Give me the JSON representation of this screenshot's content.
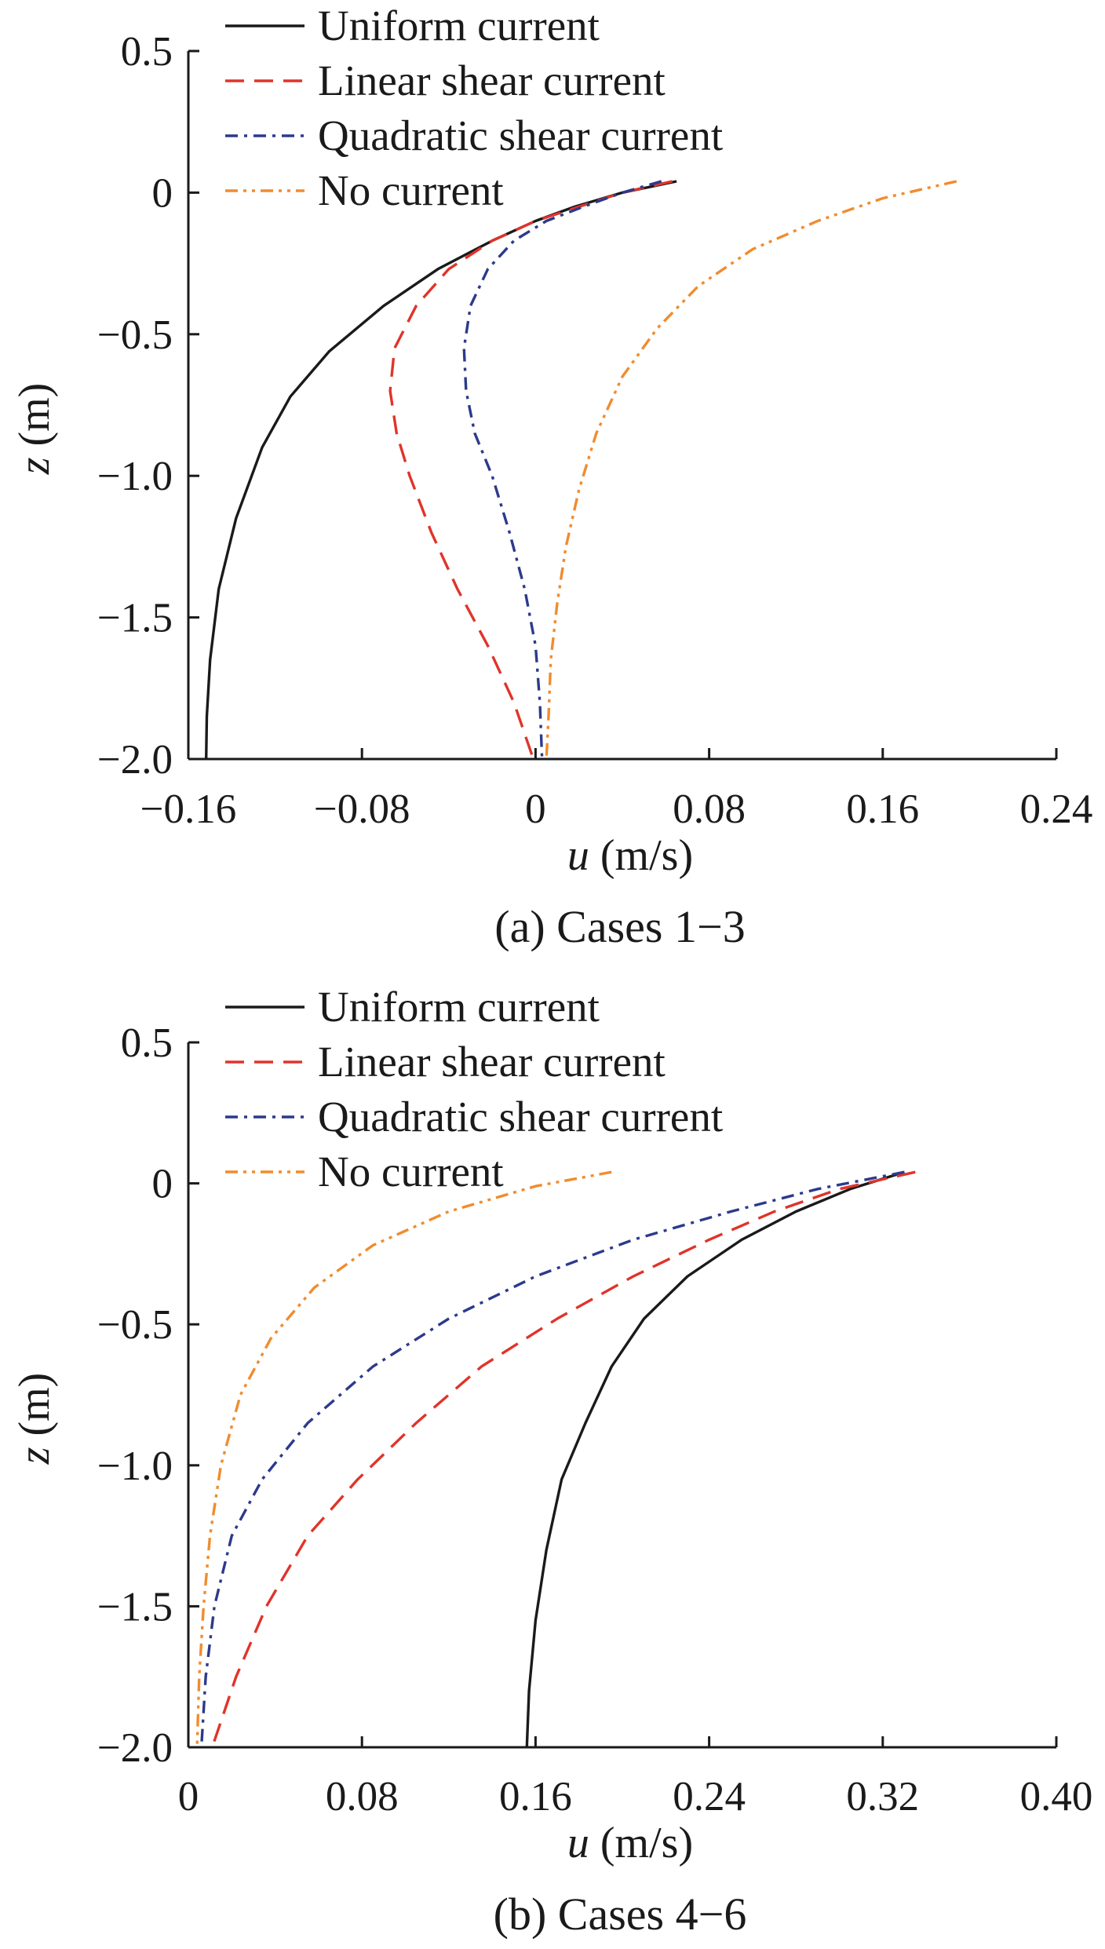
{
  "chart_data": [
    {
      "type": "line",
      "caption": "(a) Cases 1−3",
      "xlabel_symbol": "u",
      "xlabel_unit": " (m/s)",
      "ylabel_symbol": "z",
      "ylabel_unit": " (m)",
      "xlim": [
        -0.16,
        0.24
      ],
      "ylim": [
        -2.0,
        0.5
      ],
      "xticks": [
        -0.16,
        -0.08,
        0,
        0.08,
        0.16,
        0.24
      ],
      "xtick_labels": [
        "−0.16",
        "−0.08",
        "0",
        "0.08",
        "0.16",
        "0.24"
      ],
      "yticks": [
        0.5,
        0,
        -0.5,
        -1.0,
        -1.5,
        -2.0
      ],
      "ytick_labels": [
        "0.5",
        "0",
        "−0.5",
        "−1.0",
        "−1.5",
        "−2.0"
      ],
      "legend_position": "top-left",
      "series": [
        {
          "name": "Uniform current",
          "color": "#1a1a1a",
          "dash": "solid",
          "x": [
            0.065,
            0.04,
            0.018,
            0.0,
            -0.02,
            -0.045,
            -0.07,
            -0.095,
            -0.113,
            -0.126,
            -0.138,
            -0.146,
            -0.15,
            -0.1515,
            -0.1518
          ],
          "y": [
            0.04,
            0.0,
            -0.05,
            -0.1,
            -0.17,
            -0.27,
            -0.4,
            -0.56,
            -0.72,
            -0.9,
            -1.15,
            -1.4,
            -1.65,
            -1.85,
            -2.0
          ]
        },
        {
          "name": "Linear shear current",
          "color": "#e0342a",
          "dash": "dash",
          "x": [
            0.063,
            0.04,
            0.02,
            0.0,
            -0.02,
            -0.04,
            -0.055,
            -0.065,
            -0.067,
            -0.064,
            -0.058,
            -0.048,
            -0.036,
            -0.022,
            -0.01,
            -0.001
          ],
          "y": [
            0.04,
            0.0,
            -0.05,
            -0.1,
            -0.17,
            -0.27,
            -0.4,
            -0.55,
            -0.7,
            -0.85,
            -1.0,
            -1.2,
            -1.4,
            -1.6,
            -1.8,
            -2.0
          ]
        },
        {
          "name": "Quadratic shear current",
          "color": "#2c3a8c",
          "dash": "dashdot",
          "x": [
            0.058,
            0.04,
            0.022,
            0.005,
            -0.01,
            -0.022,
            -0.03,
            -0.033,
            -0.032,
            -0.028,
            -0.02,
            -0.012,
            -0.005,
            0.0,
            0.002,
            0.003
          ],
          "y": [
            0.04,
            0.0,
            -0.05,
            -0.1,
            -0.17,
            -0.27,
            -0.4,
            -0.55,
            -0.7,
            -0.85,
            -1.0,
            -1.2,
            -1.4,
            -1.6,
            -1.8,
            -2.0
          ]
        },
        {
          "name": "No current",
          "color": "#f08c2e",
          "dash": "dashdotdot",
          "x": [
            0.194,
            0.16,
            0.13,
            0.1,
            0.075,
            0.056,
            0.04,
            0.028,
            0.02,
            0.014,
            0.01,
            0.007,
            0.006,
            0.005
          ],
          "y": [
            0.04,
            -0.02,
            -0.1,
            -0.2,
            -0.33,
            -0.48,
            -0.65,
            -0.85,
            -1.05,
            -1.25,
            -1.45,
            -1.65,
            -1.85,
            -2.0
          ]
        }
      ]
    },
    {
      "type": "line",
      "caption": "(b) Cases 4−6",
      "xlabel_symbol": "u",
      "xlabel_unit": " (m/s)",
      "ylabel_symbol": "z",
      "ylabel_unit": " (m)",
      "xlim": [
        0,
        0.4
      ],
      "ylim": [
        -2.0,
        0.5
      ],
      "xticks": [
        0,
        0.08,
        0.16,
        0.24,
        0.32,
        0.4
      ],
      "xtick_labels": [
        "0",
        "0.08",
        "0.16",
        "0.24",
        "0.32",
        "0.40"
      ],
      "yticks": [
        0.5,
        0,
        -0.5,
        -1.0,
        -1.5,
        -2.0
      ],
      "ytick_labels": [
        "0.5",
        "0",
        "−0.5",
        "−1.0",
        "−1.5",
        "−2.0"
      ],
      "legend_position": "top-left",
      "series": [
        {
          "name": "Uniform current",
          "color": "#1a1a1a",
          "dash": "solid",
          "x": [
            0.33,
            0.305,
            0.28,
            0.255,
            0.23,
            0.21,
            0.195,
            0.183,
            0.172,
            0.165,
            0.16,
            0.157,
            0.156
          ],
          "y": [
            0.04,
            -0.02,
            -0.1,
            -0.2,
            -0.33,
            -0.48,
            -0.65,
            -0.85,
            -1.05,
            -1.3,
            -1.55,
            -1.8,
            -2.0
          ]
        },
        {
          "name": "Linear shear current",
          "color": "#e0342a",
          "dash": "dash",
          "x": [
            0.335,
            0.3,
            0.27,
            0.24,
            0.205,
            0.17,
            0.135,
            0.105,
            0.078,
            0.055,
            0.036,
            0.022,
            0.011
          ],
          "y": [
            0.04,
            -0.02,
            -0.1,
            -0.2,
            -0.33,
            -0.48,
            -0.65,
            -0.85,
            -1.05,
            -1.25,
            -1.5,
            -1.75,
            -2.0
          ]
        },
        {
          "name": "Quadratic shear current",
          "color": "#2c3a8c",
          "dash": "dashdot",
          "x": [
            0.33,
            0.29,
            0.25,
            0.205,
            0.16,
            0.12,
            0.085,
            0.055,
            0.034,
            0.02,
            0.012,
            0.008,
            0.006
          ],
          "y": [
            0.04,
            -0.02,
            -0.1,
            -0.2,
            -0.33,
            -0.48,
            -0.65,
            -0.85,
            -1.05,
            -1.25,
            -1.5,
            -1.75,
            -2.0
          ]
        },
        {
          "name": "No current",
          "color": "#f08c2e",
          "dash": "dashdotdot",
          "x": [
            0.195,
            0.16,
            0.12,
            0.085,
            0.058,
            0.038,
            0.024,
            0.015,
            0.01,
            0.007,
            0.005,
            0.004
          ],
          "y": [
            0.04,
            -0.01,
            -0.1,
            -0.22,
            -0.37,
            -0.55,
            -0.75,
            -1.0,
            -1.25,
            -1.5,
            -1.75,
            -2.0
          ]
        }
      ]
    }
  ]
}
